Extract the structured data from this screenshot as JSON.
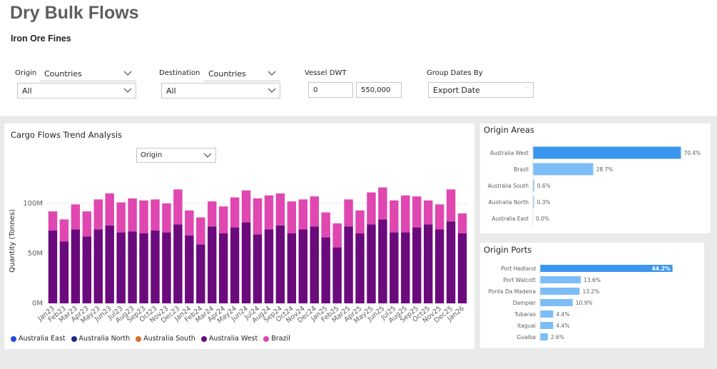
{
  "header": {
    "title": "Dry Bulk Flows",
    "subtitle": "Iron Ore Fines"
  },
  "filters": {
    "origin": {
      "label": "Origin",
      "level": "Countries",
      "value": "All"
    },
    "destination": {
      "label": "Destination",
      "level": "Countries",
      "value": "All"
    },
    "dwt": {
      "label": "Vessel DWT",
      "min": "0",
      "max": "550,000"
    },
    "group_dates": {
      "label": "Group Dates By",
      "value": "Export Date"
    }
  },
  "trend": {
    "title": "Cargo Flows Trend Analysis",
    "breakdown_select": "Origin"
  },
  "colors": {
    "australia_east": "#1f49e0",
    "australia_north": "#1a2a8a",
    "australia_south": "#e06c2e",
    "australia_west": "#6b0a7d",
    "brazil": "#e047b0",
    "bar_top": "#3a96ef",
    "bar_other": "#7dbdf5"
  },
  "chart_data": [
    {
      "type": "bar",
      "stacked": true,
      "title": "Cargo Flows Trend Analysis",
      "xlabel": "",
      "ylabel": "Quantity (Tonnes)",
      "ylim": [
        0,
        125000000
      ],
      "yticks": [
        "0M",
        "50M",
        "100M"
      ],
      "grid": true,
      "legend_position": "bottom",
      "categories": [
        "Jan23",
        "Feb23",
        "Mar23",
        "Apr23",
        "May23",
        "Jun23",
        "Jul23",
        "Aug23",
        "Sep23",
        "Oct23",
        "Nov23",
        "Dec23",
        "Jan24",
        "Feb24",
        "Mar24",
        "Apr24",
        "May24",
        "Jun24",
        "Jul24",
        "Aug24",
        "Sep24",
        "Oct24",
        "Nov24",
        "Dec24",
        "Jan25",
        "Feb25",
        "Mar25",
        "Apr25",
        "May25",
        "Jun25",
        "Jul25",
        "Aug25",
        "Sep25",
        "Oct25",
        "Nov25",
        "Dec25",
        "Jan26"
      ],
      "series": [
        {
          "name": "Australia East",
          "color": "#1f49e0",
          "values": [
            0,
            0,
            0,
            0,
            0,
            0,
            0,
            0,
            0,
            0,
            0,
            0,
            0,
            0,
            0,
            0,
            0,
            0,
            0,
            0,
            0,
            0,
            0,
            0,
            0,
            0,
            0,
            0,
            0,
            0,
            0,
            0,
            0,
            0,
            0,
            0,
            0
          ]
        },
        {
          "name": "Australia North",
          "color": "#1a2a8a",
          "values": [
            0,
            0,
            0,
            0,
            0,
            0,
            0,
            0,
            0,
            0,
            0,
            0,
            0,
            0,
            0,
            0,
            0,
            0,
            0,
            0,
            0,
            0,
            0,
            0,
            0,
            0,
            0,
            0,
            0,
            0,
            0,
            0,
            0,
            0,
            0,
            0,
            0
          ]
        },
        {
          "name": "Australia South",
          "color": "#e06c2e",
          "values": [
            0,
            0,
            0,
            0,
            0,
            0,
            0,
            0,
            0,
            0,
            0,
            0,
            0,
            0,
            0,
            0,
            0,
            0,
            0,
            0,
            0,
            0,
            0,
            0,
            0,
            0,
            0,
            0,
            0,
            0,
            0,
            0,
            0,
            0,
            0,
            0,
            0
          ]
        },
        {
          "name": "Australia West",
          "color": "#6b0a7d",
          "values": [
            73,
            62,
            74,
            67,
            74,
            78,
            71,
            72,
            70,
            73,
            71,
            79,
            68,
            59,
            77,
            70,
            76,
            81,
            69,
            74,
            78,
            70,
            74,
            77,
            66,
            56,
            77,
            70,
            79,
            84,
            71,
            71,
            76,
            79,
            74,
            82,
            70
          ]
        },
        {
          "name": "Brazil",
          "color": "#e047b0",
          "values": [
            19,
            22,
            25,
            25,
            30,
            32,
            30,
            33,
            33,
            31,
            29,
            35,
            25,
            27,
            25,
            27,
            30,
            32,
            36,
            34,
            32,
            32,
            30,
            30,
            25,
            24,
            27,
            23,
            32,
            32,
            32,
            37,
            31,
            24,
            25,
            32,
            20
          ]
        }
      ],
      "value_unit": "M tonnes"
    },
    {
      "type": "bar",
      "orientation": "horizontal",
      "title": "Origin Areas",
      "categories": [
        "Australia West",
        "Brazil",
        "Australia South",
        "Australia North",
        "Australia East"
      ],
      "values": [
        70.4,
        28.7,
        0.6,
        0.3,
        0.0
      ],
      "labels": [
        "70.4%",
        "28.7%",
        "0.6%",
        "0.3%",
        "0.0%"
      ],
      "xlim": [
        0,
        75
      ]
    },
    {
      "type": "bar",
      "orientation": "horizontal",
      "title": "Origin Ports",
      "categories": [
        "Port Hedland",
        "Port Walcott",
        "Ponta Da Madeira",
        "Dampier",
        "Tubarao",
        "Itaguai",
        "Guaiba"
      ],
      "values": [
        44.2,
        13.6,
        13.2,
        10.9,
        4.4,
        4.4,
        2.6
      ],
      "labels": [
        "44.2%",
        "13.6%",
        "13.2%",
        "10.9%",
        "4.4%",
        "4.4%",
        "2.6%"
      ],
      "xlim": [
        0,
        50
      ]
    }
  ],
  "icons": {
    "chevron": "chevron-down-icon"
  }
}
